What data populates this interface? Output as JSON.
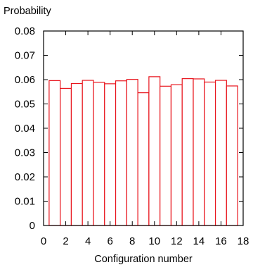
{
  "chart_data": {
    "type": "bar",
    "xlabel": "Configuration number",
    "ylabel": "Probability",
    "xlim": [
      0,
      18
    ],
    "ylim": [
      0,
      0.08
    ],
    "x_ticks": [
      "0",
      "2",
      "4",
      "6",
      "8",
      "10",
      "12",
      "14",
      "16",
      "18"
    ],
    "y_ticks": [
      "0",
      "0.01",
      "0.02",
      "0.03",
      "0.04",
      "0.05",
      "0.06",
      "0.07",
      "0.08"
    ],
    "bar_color": "#e8141c",
    "grid": false,
    "x": [
      1,
      2,
      3,
      4,
      5,
      6,
      7,
      8,
      9,
      10,
      11,
      12,
      13,
      14,
      15,
      16,
      17
    ],
    "values": [
      0.0596,
      0.0564,
      0.0584,
      0.0597,
      0.0589,
      0.0583,
      0.0595,
      0.0601,
      0.0546,
      0.0612,
      0.0573,
      0.0579,
      0.0604,
      0.0603,
      0.059,
      0.0597,
      0.0574
    ]
  }
}
